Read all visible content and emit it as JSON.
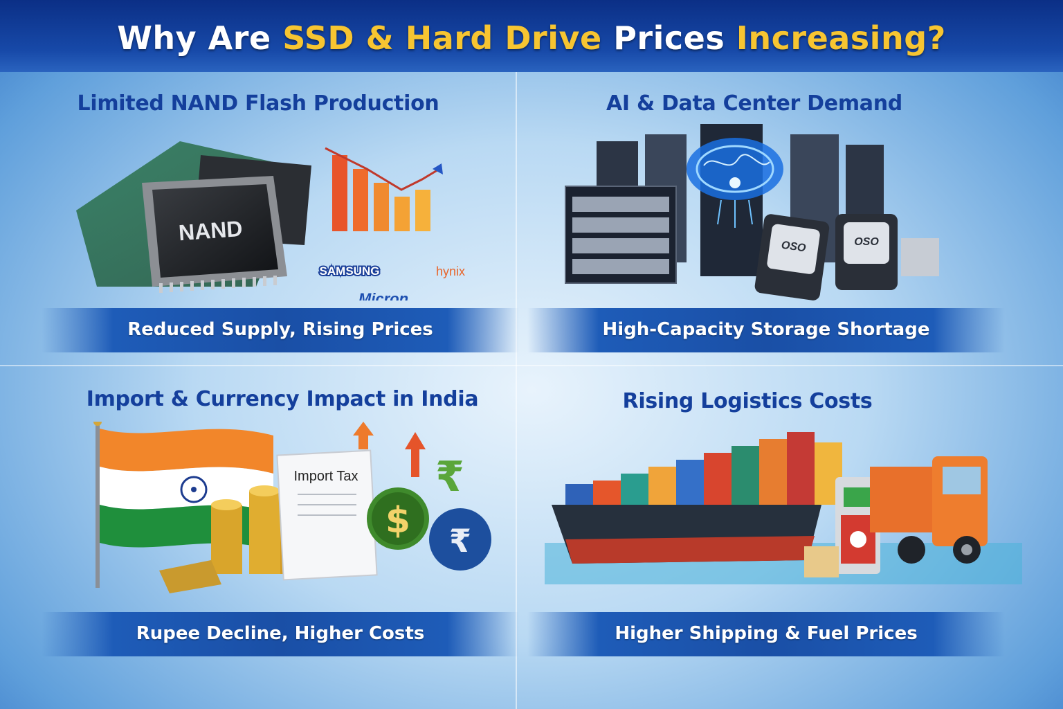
{
  "header": {
    "title_part1": "Why Are ",
    "title_highlight1": "SSD & Hard Drive",
    "title_part2": " Prices ",
    "title_highlight2": "Increasing?"
  },
  "panels": [
    {
      "title": "Limited NAND Flash Production",
      "banner": "Reduced Supply, Rising Prices",
      "chip_label": "NAND",
      "brands": [
        "SAMSUNG",
        "hynix",
        "Micron"
      ]
    },
    {
      "title": "AI & Data Center Demand",
      "banner": "High-Capacity Storage Shortage",
      "drive_label": "OSO"
    },
    {
      "title": "Import & Currency Impact in India",
      "banner": "Rupee Decline, Higher Costs",
      "doc_label": "Import Tax",
      "currency_symbols": [
        "$",
        "₹",
        "₹"
      ]
    },
    {
      "title": "Rising Logistics Costs",
      "banner": "Higher Shipping & Fuel Prices"
    }
  ],
  "colors": {
    "header_bg": "#0b2f86",
    "highlight": "#f7c531",
    "title_blue": "#143f9c",
    "banner_blue": "#1a4fa6"
  }
}
